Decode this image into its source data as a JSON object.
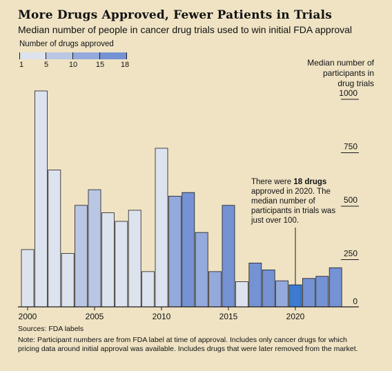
{
  "title": "More Drugs Approved, Fewer Patients in Trials",
  "subtitle": "Median number of people in cancer drug trials used to win initial FDA approval",
  "legend": {
    "title": "Number of drugs approved",
    "ticks": [
      "1",
      "5",
      "10",
      "15",
      "18"
    ],
    "colors": [
      "#dde3ee",
      "#b9c6e4",
      "#94a9dc",
      "#7492d4"
    ]
  },
  "ylabel": "Median number of participants in drug trials",
  "annotation": {
    "text_before": "There were ",
    "bold": "18 drugs",
    "text_after": " approved in 2020. The median number of participants in trials was just over 100."
  },
  "source": "Sources: FDA labels",
  "note": "Note: Participant numbers are from FDA label at time of approval. Includes only cancer drugs for which pricing data around initial approval was available. Includes drugs that were later removed from the market.",
  "chart_data": {
    "type": "bar",
    "title": "More Drugs Approved, Fewer Patients in Trials",
    "ylabel": "Median number of participants in drug trials",
    "ylim": [
      0,
      1000
    ],
    "yticks": [
      0,
      250,
      500,
      750,
      1000
    ],
    "xticks": [
      2000,
      2005,
      2010,
      2015,
      2020
    ],
    "grid": false,
    "categories": [
      2000,
      2001,
      2002,
      2003,
      2004,
      2005,
      2006,
      2007,
      2008,
      2009,
      2010,
      2011,
      2012,
      2013,
      2014,
      2015,
      2016,
      2017,
      2018,
      2019,
      2020,
      2021,
      2022,
      2023
    ],
    "values": [
      268,
      1010,
      640,
      250,
      475,
      548,
      440,
      400,
      452,
      165,
      742,
      518,
      535,
      348,
      165,
      475,
      118,
      205,
      173,
      122,
      103,
      133,
      143,
      183
    ],
    "colors": [
      "#dde3ee",
      "#dde3ee",
      "#dde3ee",
      "#dde3ee",
      "#b9c6e4",
      "#b9c6e4",
      "#dde3ee",
      "#dde3ee",
      "#dde3ee",
      "#dde3ee",
      "#dde3ee",
      "#94a9dc",
      "#7492d4",
      "#94a9dc",
      "#94a9dc",
      "#7492d4",
      "#dde3ee",
      "#7492d4",
      "#7492d4",
      "#94a9dc",
      "#3d7ad0",
      "#7492d4",
      "#7492d4",
      "#7492d4"
    ],
    "highlight_color": "#3d7ad0",
    "highlight_category": 2020
  }
}
